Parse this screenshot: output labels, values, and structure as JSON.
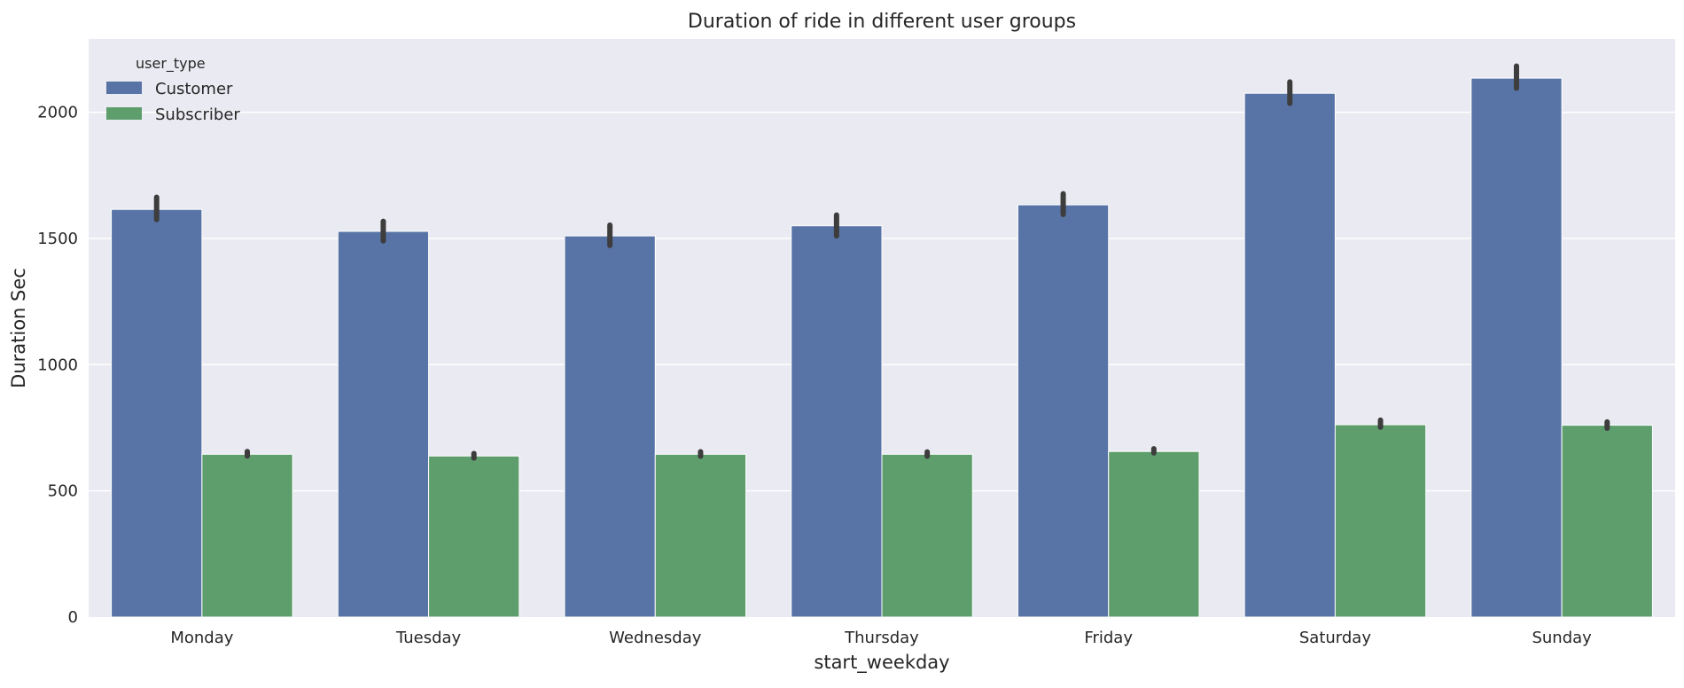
{
  "chart_data": {
    "type": "bar",
    "title": "Duration of ride in different user groups",
    "xlabel": "start_weekday",
    "ylabel": "Duration Sec",
    "categories": [
      "Monday",
      "Tuesday",
      "Wednesday",
      "Thursday",
      "Friday",
      "Saturday",
      "Sunday"
    ],
    "series": [
      {
        "name": "Customer",
        "color": "#5874a6",
        "values": [
          1615,
          1528,
          1510,
          1550,
          1633,
          2075,
          2135
        ],
        "ci_low": [
          1575,
          1490,
          1472,
          1510,
          1595,
          2035,
          2095
        ],
        "ci_high": [
          1663,
          1568,
          1553,
          1593,
          1677,
          2120,
          2183
        ]
      },
      {
        "name": "Subscriber",
        "color": "#5e9e6d",
        "values": [
          645,
          638,
          645,
          645,
          656,
          762,
          760
        ],
        "ci_low": [
          638,
          630,
          637,
          637,
          650,
          752,
          748
        ],
        "ci_high": [
          656,
          648,
          655,
          654,
          667,
          780,
          773
        ]
      }
    ],
    "yticks": [
      0,
      500,
      1000,
      1500,
      2000
    ],
    "ylim": [
      0,
      2290
    ],
    "legend": {
      "title": "user_type",
      "placement": "top-left"
    },
    "grid": true
  }
}
